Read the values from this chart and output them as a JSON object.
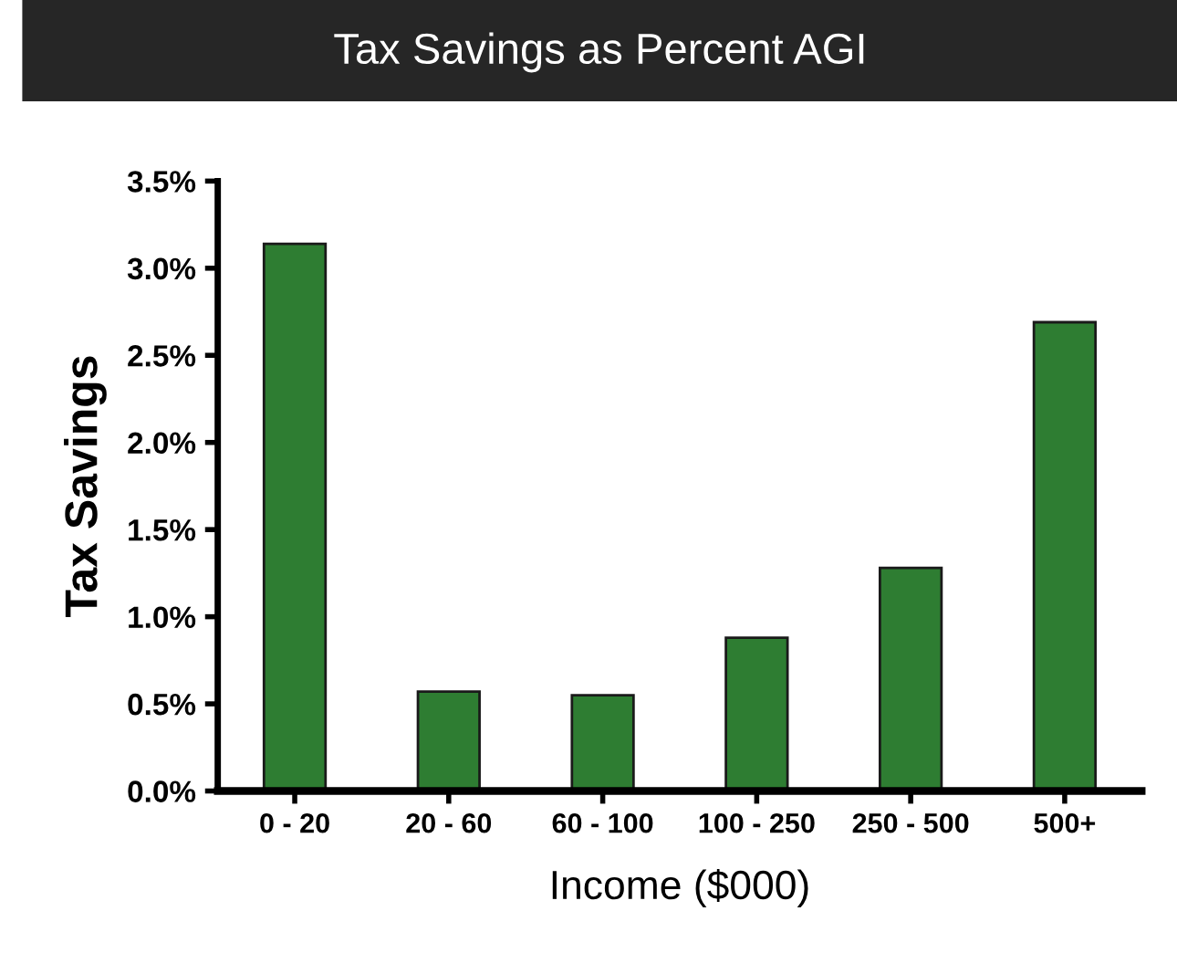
{
  "chart_data": {
    "type": "bar",
    "title": "Tax Savings as Percent AGI",
    "xlabel": "Income ($000)",
    "ylabel": "Tax Savings",
    "categories": [
      "0 - 20",
      "20 - 60",
      "60 - 100",
      "100 - 250",
      "250 - 500",
      "500+"
    ],
    "values": [
      3.14,
      0.57,
      0.55,
      0.88,
      1.28,
      2.69
    ],
    "color": "#2e7d32",
    "ylim": [
      0,
      3.5
    ],
    "yticks": [
      {
        "value": 0,
        "label": "0.0%"
      },
      {
        "value": 0.5,
        "label": "0.5%"
      },
      {
        "value": 1,
        "label": "1.0%"
      },
      {
        "value": 1.5,
        "label": "1.5%"
      },
      {
        "value": 2,
        "label": "2.0%"
      },
      {
        "value": 2.5,
        "label": "2.5%"
      },
      {
        "value": 3,
        "label": "3.0%"
      },
      {
        "value": 3.5,
        "label": "3.5%"
      }
    ],
    "grid": false
  }
}
